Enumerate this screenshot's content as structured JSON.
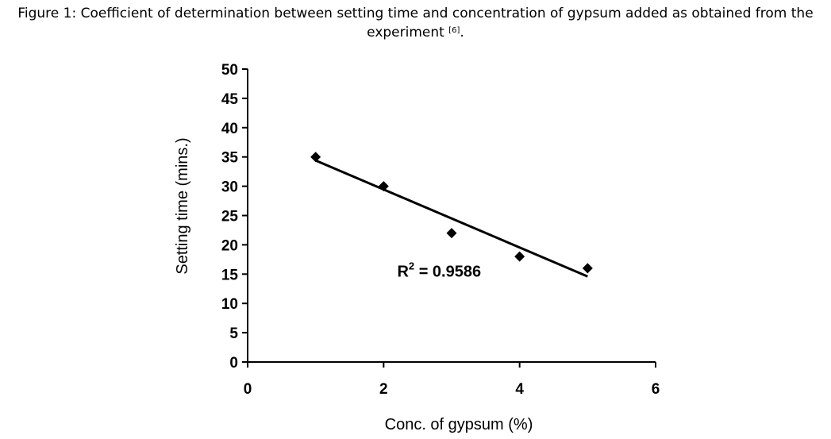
{
  "caption": {
    "text": "Figure 1: Coefficient of determination between setting time and concentration of gypsum added as obtained from the experiment",
    "citation": "[6]",
    "end": "."
  },
  "chart_data": {
    "type": "scatter",
    "xlabel": "Conc. of gypsum (%)",
    "ylabel": "Setting time (mins.)",
    "xlim": [
      0,
      6
    ],
    "ylim": [
      0,
      50
    ],
    "xticks": [
      0,
      2,
      4,
      6
    ],
    "yticks": [
      0,
      5,
      10,
      15,
      20,
      25,
      30,
      35,
      40,
      45,
      50
    ],
    "grid": false,
    "legend": "none",
    "marker_color": "#000000",
    "series": [
      {
        "marker": "diamond",
        "x": [
          1,
          2,
          3,
          4,
          5
        ],
        "y": [
          35,
          30,
          22,
          18,
          16
        ]
      }
    ],
    "trendline": {
      "type": "linear",
      "x_range": [
        1,
        5
      ],
      "y_start": 34.4,
      "y_end": 14.6
    },
    "annotation": {
      "base": "R",
      "sup": "2",
      "rest": " = 0.9586",
      "x": 2.2,
      "y": 15.5
    }
  }
}
